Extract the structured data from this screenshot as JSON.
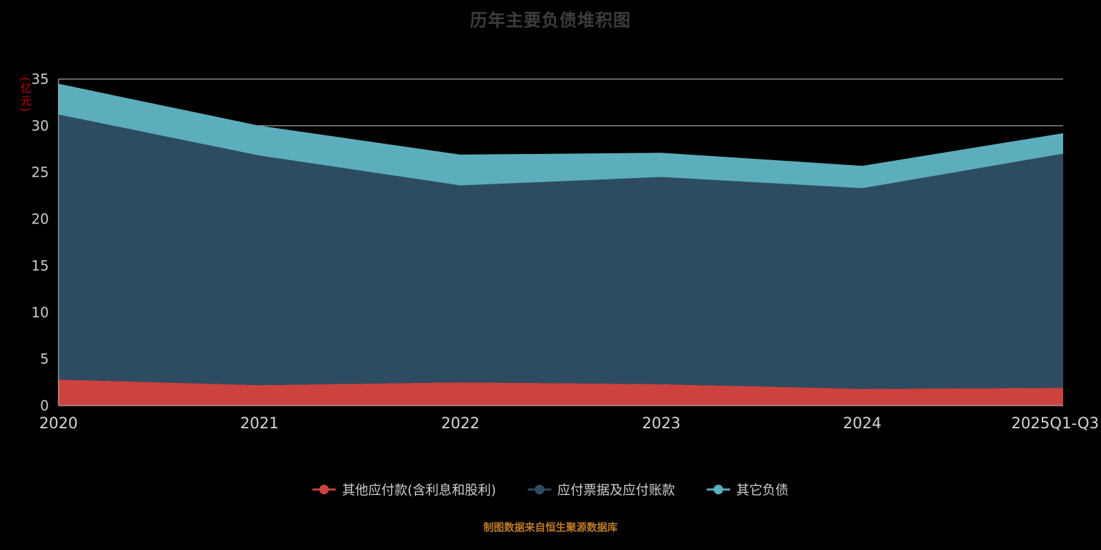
{
  "chart_data": {
    "type": "area",
    "stacked": true,
    "title": "历年主要负债堆积图",
    "ylabel": "(亿元)",
    "footer": "制图数据来自恒生聚源数据库",
    "categories": [
      "2020",
      "2021",
      "2022",
      "2023",
      "2024",
      "2025Q1-Q3"
    ],
    "series": [
      {
        "name": "其他应付款(含利息和股利)",
        "color": "#cb423f",
        "values": [
          2.8,
          2.2,
          2.5,
          2.3,
          1.8,
          1.9
        ]
      },
      {
        "name": "应付票据及应付账款",
        "color": "#2e4c61",
        "values": [
          28.4,
          24.6,
          21.1,
          22.2,
          21.5,
          25.1
        ]
      },
      {
        "name": "其它负债",
        "color": "#5caebc",
        "values": [
          3.3,
          3.2,
          3.3,
          2.6,
          2.4,
          2.2
        ]
      }
    ],
    "ylim": [
      0,
      35
    ],
    "yticks": [
      0,
      5,
      10,
      15,
      20,
      25,
      30,
      35
    ],
    "grid": true,
    "legend_position": "bottom",
    "colors": {
      "background": "#000000",
      "gridline": "#cfcfcf",
      "axis": "#cccccc",
      "tick_text": "#cccccc",
      "title_text": "#3d3d3d",
      "unit_text": "#cc0000",
      "footer_text": "#bd7b28"
    }
  }
}
